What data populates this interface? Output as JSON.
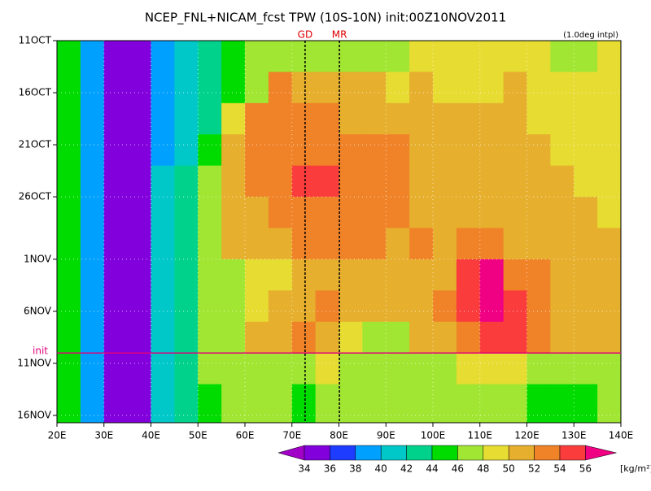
{
  "chart_data": {
    "type": "heatmap",
    "title": "NCEP_FNL+NICAM_fcst TPW (10S-10N) init:00Z10NOV2011",
    "note": "(1.0deg intpl)",
    "units": "[kg/m²]",
    "xbins": [
      20,
      25,
      30,
      35,
      40,
      45,
      50,
      55,
      60,
      65,
      70,
      75,
      80,
      85,
      90,
      95,
      100,
      105,
      110,
      115,
      120,
      125,
      130,
      135,
      140
    ],
    "ybins": [
      0,
      3,
      6,
      9,
      12,
      15,
      18,
      21,
      24,
      27,
      30,
      33,
      36.7
    ],
    "values": [
      [
        45,
        39,
        35,
        34,
        38,
        41,
        43,
        44,
        46,
        47,
        47,
        47,
        46,
        47,
        47,
        48,
        48,
        48,
        48,
        48,
        48,
        47,
        47,
        48
      ],
      [
        45,
        39,
        35,
        34,
        38,
        41,
        42,
        44,
        46,
        53,
        50,
        50,
        50,
        50,
        49,
        50,
        49,
        49,
        49,
        50,
        49,
        48,
        48,
        48
      ],
      [
        44,
        39,
        35,
        34,
        38,
        41,
        43,
        48,
        52,
        52,
        52,
        52,
        51,
        51,
        50,
        50,
        50,
        50,
        50,
        50,
        49,
        48,
        48,
        48
      ],
      [
        44,
        38,
        34,
        35,
        39,
        41,
        44,
        50,
        52,
        52,
        52,
        52,
        52,
        52,
        52,
        51,
        50,
        50,
        50,
        50,
        50,
        49,
        48,
        48
      ],
      [
        44,
        38,
        34,
        35,
        40,
        42,
        46,
        50,
        52,
        52,
        54,
        54,
        52,
        52,
        52,
        51,
        50,
        51,
        51,
        50,
        50,
        50,
        49,
        49
      ],
      [
        44,
        38,
        34,
        35,
        40,
        42,
        46,
        50,
        51,
        52,
        53,
        52,
        52,
        52,
        52,
        51,
        50,
        51,
        51,
        51,
        50,
        50,
        50,
        49
      ],
      [
        44,
        38,
        35,
        35,
        40,
        43,
        46,
        50,
        50,
        51,
        52,
        52,
        52,
        52,
        51,
        52,
        51,
        52,
        52,
        51,
        50,
        50,
        50,
        50
      ],
      [
        44,
        38,
        35,
        35,
        40,
        42,
        46,
        47,
        48,
        49,
        50,
        51,
        51,
        50,
        50,
        51,
        51,
        55,
        56,
        53,
        52,
        50,
        50,
        50
      ],
      [
        44,
        38,
        35,
        35,
        40,
        42,
        46,
        47,
        49,
        50,
        51,
        52,
        51,
        50,
        50,
        50,
        52,
        55,
        57,
        54,
        52,
        50,
        50,
        50
      ],
      [
        44,
        38,
        35,
        35,
        40,
        42,
        46,
        47,
        50,
        51,
        52,
        51,
        48,
        47,
        46,
        50,
        51,
        53,
        54,
        54,
        52,
        51,
        50,
        50
      ],
      [
        44,
        38,
        35,
        35,
        41,
        43,
        46,
        47,
        47,
        47,
        47,
        48,
        47,
        47,
        46,
        47,
        47,
        48,
        48,
        48,
        47,
        46,
        47,
        47
      ],
      [
        44,
        38,
        34,
        35,
        41,
        43,
        45,
        46,
        46,
        46,
        45,
        46,
        46,
        47,
        46,
        46,
        46,
        46,
        46,
        46,
        45,
        45,
        45,
        46
      ]
    ],
    "levels": [
      34,
      36,
      38,
      40,
      42,
      44,
      46,
      48,
      50,
      52,
      54,
      56
    ],
    "colors": [
      "#a000c8",
      "#8200dc",
      "#1e3cff",
      "#00a0ff",
      "#00c8c8",
      "#00d28c",
      "#00dc00",
      "#a0e632",
      "#e6dc32",
      "#e6af2d",
      "#f08228",
      "#fa3c3c",
      "#f00082"
    ],
    "xlim": [
      20,
      140
    ],
    "xticks": [
      {
        "value": 20,
        "label": "20E"
      },
      {
        "value": 30,
        "label": "30E"
      },
      {
        "value": 40,
        "label": "40E"
      },
      {
        "value": 50,
        "label": "50E"
      },
      {
        "value": 60,
        "label": "60E"
      },
      {
        "value": 70,
        "label": "70E"
      },
      {
        "value": 80,
        "label": "80E"
      },
      {
        "value": 90,
        "label": "90E"
      },
      {
        "value": 100,
        "label": "100E"
      },
      {
        "value": 110,
        "label": "110E"
      },
      {
        "value": 120,
        "label": "120E"
      },
      {
        "value": 130,
        "label": "130E"
      },
      {
        "value": 140,
        "label": "140E"
      }
    ],
    "ylim": [
      36.7,
      0
    ],
    "yticks": [
      {
        "value": 0,
        "label": "11OCT"
      },
      {
        "value": 5,
        "label": "16OCT"
      },
      {
        "value": 10,
        "label": "21OCT"
      },
      {
        "value": 15,
        "label": "26OCT"
      },
      {
        "value": 21,
        "label": "1NOV"
      },
      {
        "value": 26,
        "label": "6NOV"
      },
      {
        "value": 31,
        "label": "11NOV"
      },
      {
        "value": 36,
        "label": "16NOV"
      }
    ],
    "grid": true,
    "vlines": [
      {
        "text": "GD",
        "value": 72.8
      },
      {
        "text": "MR",
        "value": 80.1
      }
    ],
    "hlines": [
      {
        "text": "init",
        "value": 30
      }
    ]
  }
}
